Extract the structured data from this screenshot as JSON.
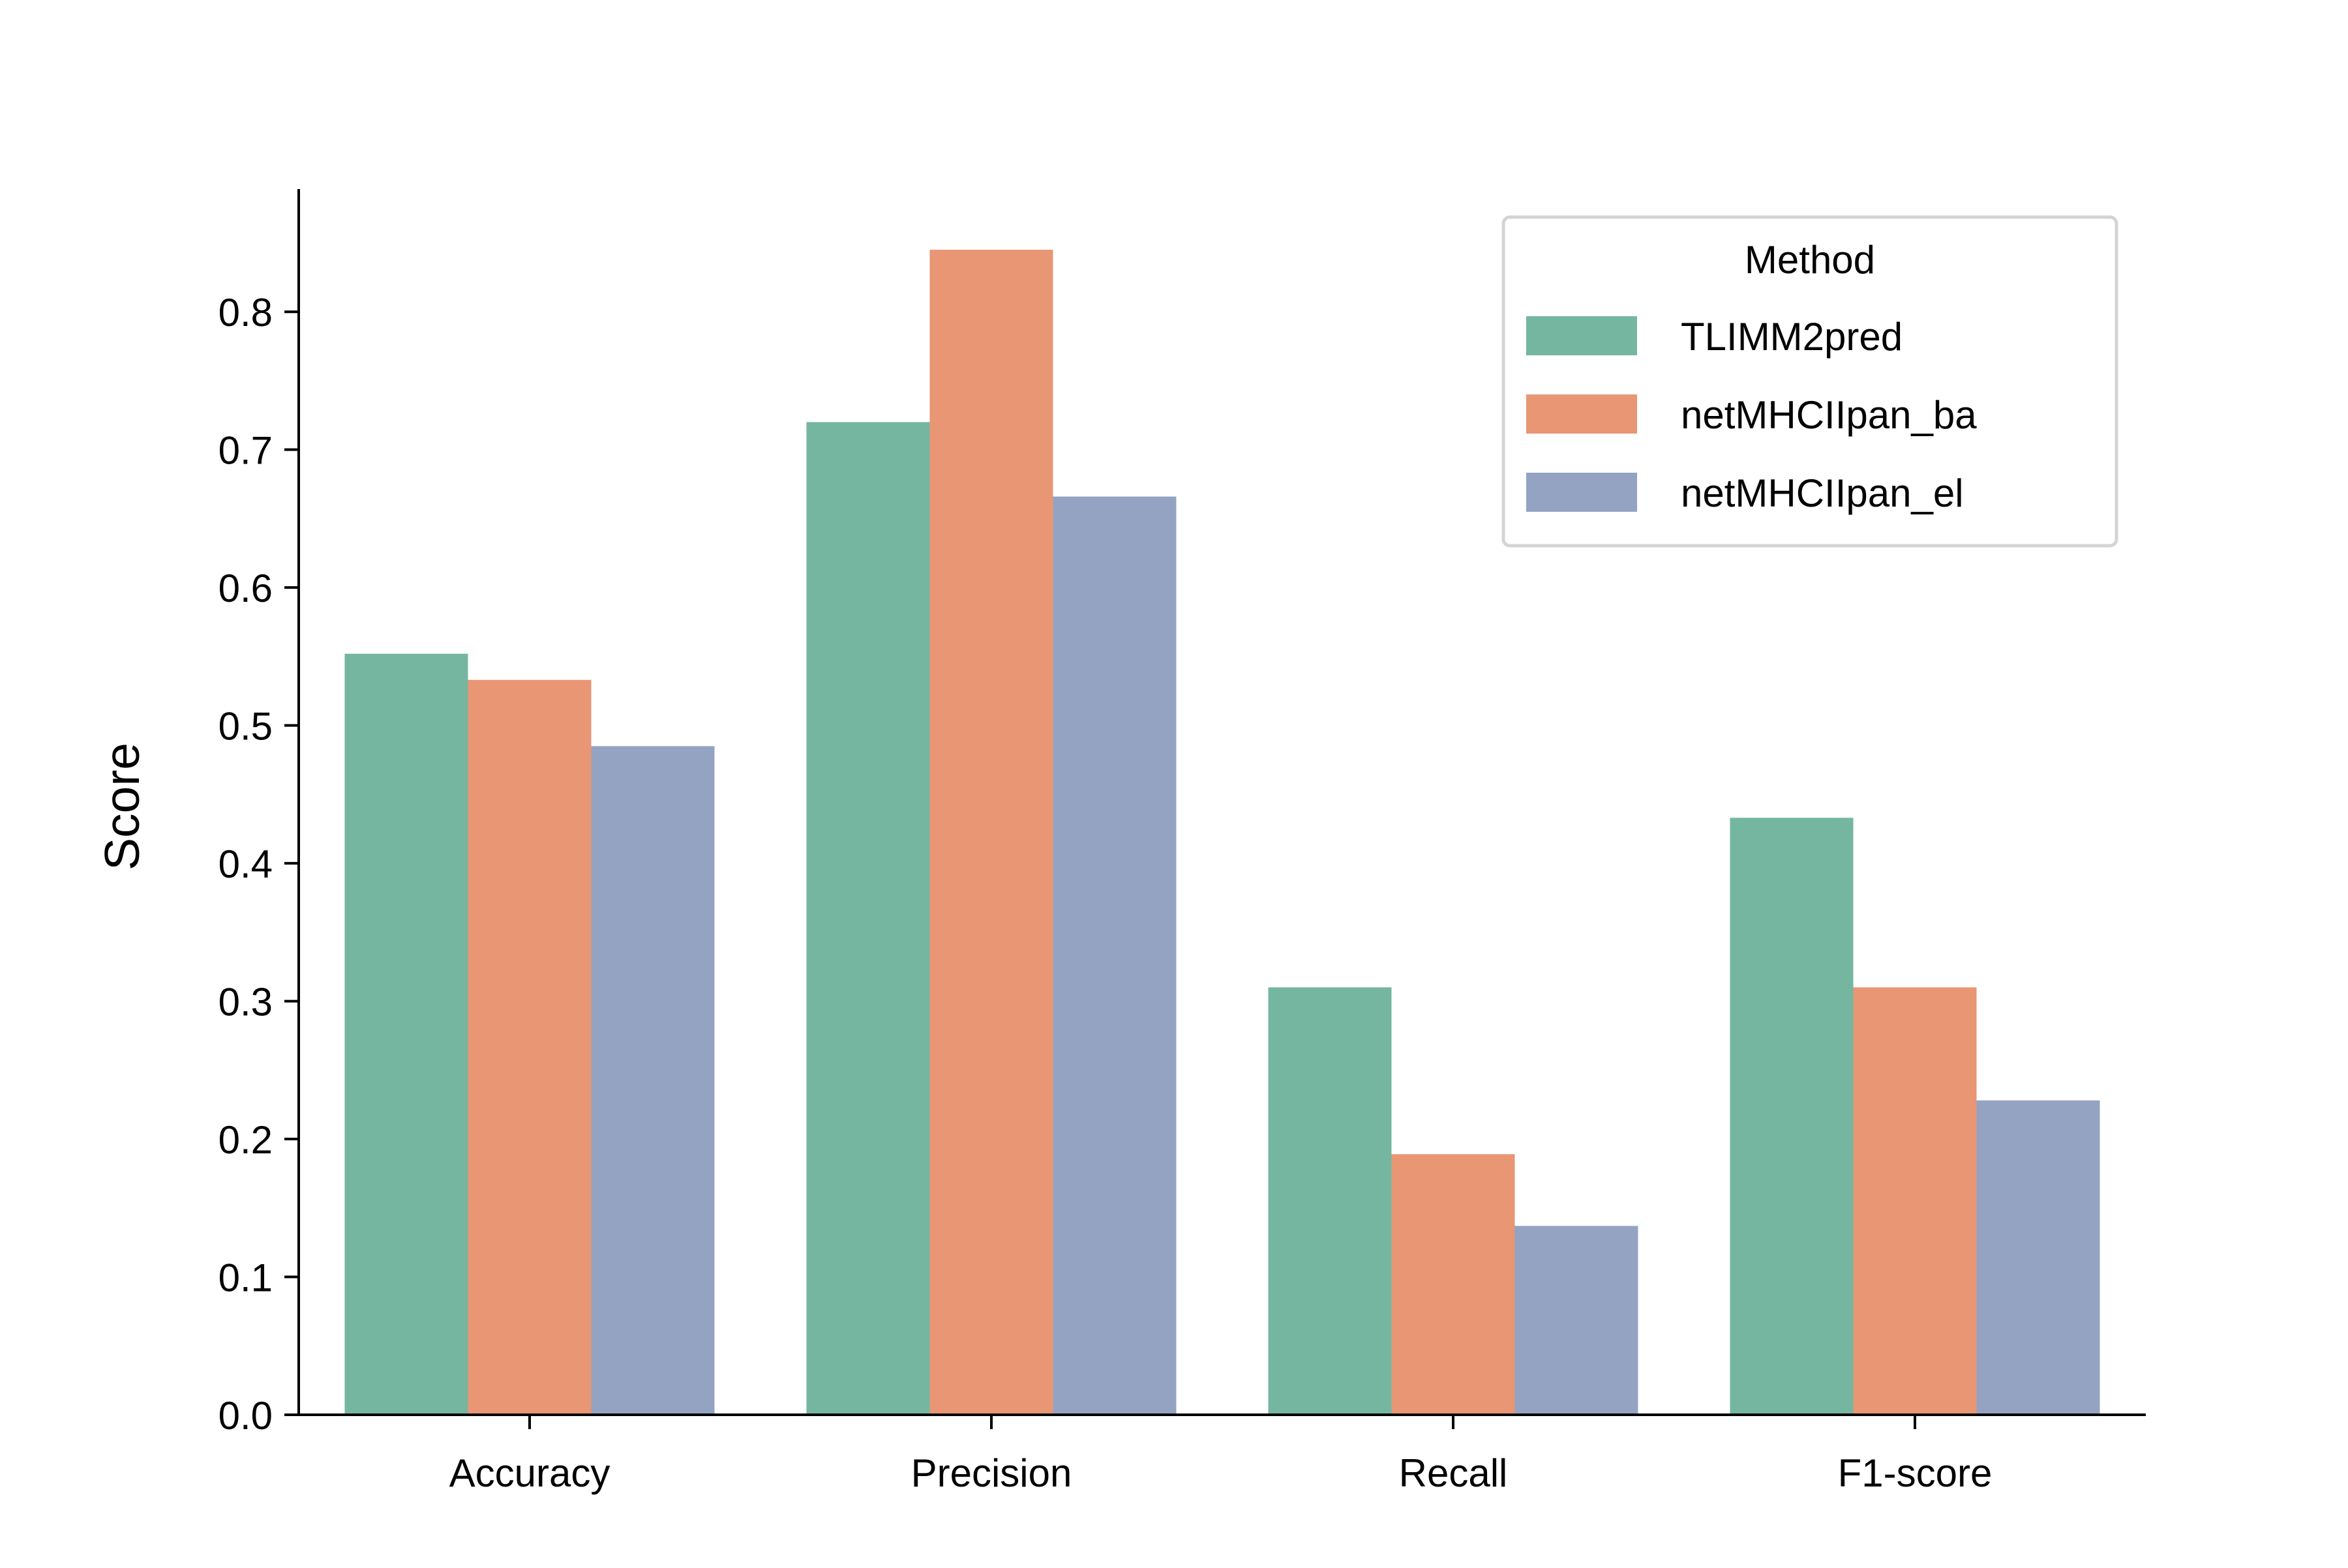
{
  "chart_data": {
    "type": "bar",
    "title": "",
    "xlabel": "",
    "ylabel": "Score",
    "ylim": [
      0,
      0.889
    ],
    "yticks": [
      0.0,
      0.1,
      0.2,
      0.3,
      0.4,
      0.5,
      0.6,
      0.7,
      0.8
    ],
    "ytick_labels": [
      "0.0",
      "0.1",
      "0.2",
      "0.3",
      "0.4",
      "0.5",
      "0.6",
      "0.7",
      "0.8"
    ],
    "categories": [
      "Accuracy",
      "Precision",
      "Recall",
      "F1-score"
    ],
    "grid": false,
    "legend": {
      "title": "Method",
      "placement": "top-right"
    },
    "series": [
      {
        "name": "TLIMM2pred",
        "color": "#75b6a0",
        "values": [
          0.552,
          0.72,
          0.31,
          0.433
        ]
      },
      {
        "name": "netMHCIIpan_ba",
        "color": "#e89674",
        "values": [
          0.533,
          0.845,
          0.189,
          0.31
        ]
      },
      {
        "name": "netMHCIIpan_el",
        "color": "#95a3c3",
        "values": [
          0.485,
          0.666,
          0.137,
          0.228
        ]
      }
    ]
  }
}
